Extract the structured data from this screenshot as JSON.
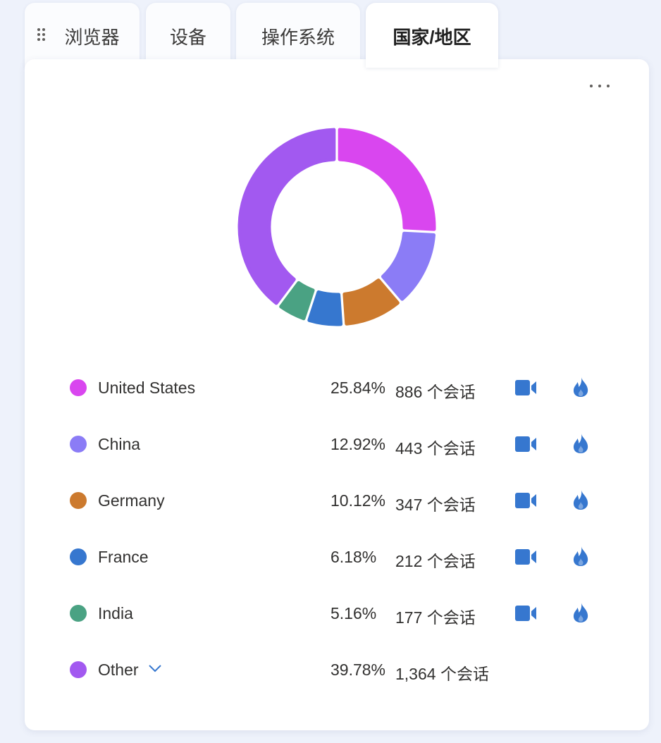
{
  "tabs": [
    {
      "label": "浏览器"
    },
    {
      "label": "设备"
    },
    {
      "label": "操作系统"
    },
    {
      "label": "国家/地区"
    }
  ],
  "active_tab": 3,
  "chart_data": {
    "type": "pie",
    "variant": "donut",
    "categories": [
      "United States",
      "China",
      "Germany",
      "France",
      "India",
      "Other"
    ],
    "values": [
      25.84,
      12.92,
      10.12,
      6.18,
      5.16,
      39.78
    ],
    "colors": [
      "#d946ef",
      "#8b7cf6",
      "#cc7a2e",
      "#3677cf",
      "#4aa283",
      "#a259f0"
    ],
    "legend_placement": "bottom"
  },
  "rows": [
    {
      "name": "United States",
      "percent": "25.84%",
      "sessions": "886 个会话",
      "color": "#d946ef",
      "icons": [
        "video-camera-icon",
        "flame-icon"
      ]
    },
    {
      "name": "China",
      "percent": "12.92%",
      "sessions": "443 个会话",
      "color": "#8b7cf6",
      "icons": [
        "video-camera-icon",
        "flame-icon"
      ]
    },
    {
      "name": "Germany",
      "percent": "10.12%",
      "sessions": "347 个会话",
      "color": "#cc7a2e",
      "icons": [
        "video-camera-icon",
        "flame-icon"
      ]
    },
    {
      "name": "France",
      "percent": "6.18%",
      "sessions": "212 个会话",
      "color": "#3677cf",
      "icons": [
        "video-camera-icon",
        "flame-icon"
      ]
    },
    {
      "name": "India",
      "percent": "5.16%",
      "sessions": "177 个会话",
      "color": "#4aa283",
      "icons": [
        "video-camera-icon",
        "flame-icon"
      ]
    },
    {
      "name": "Other",
      "percent": "39.78%",
      "sessions": "1,364 个会话",
      "color": "#a259f0",
      "icons": [
        "chevron-down-icon"
      ]
    }
  ],
  "colors": {
    "icon_blue": "#3677cf",
    "background": "#eef2fb",
    "card": "#ffffff"
  }
}
